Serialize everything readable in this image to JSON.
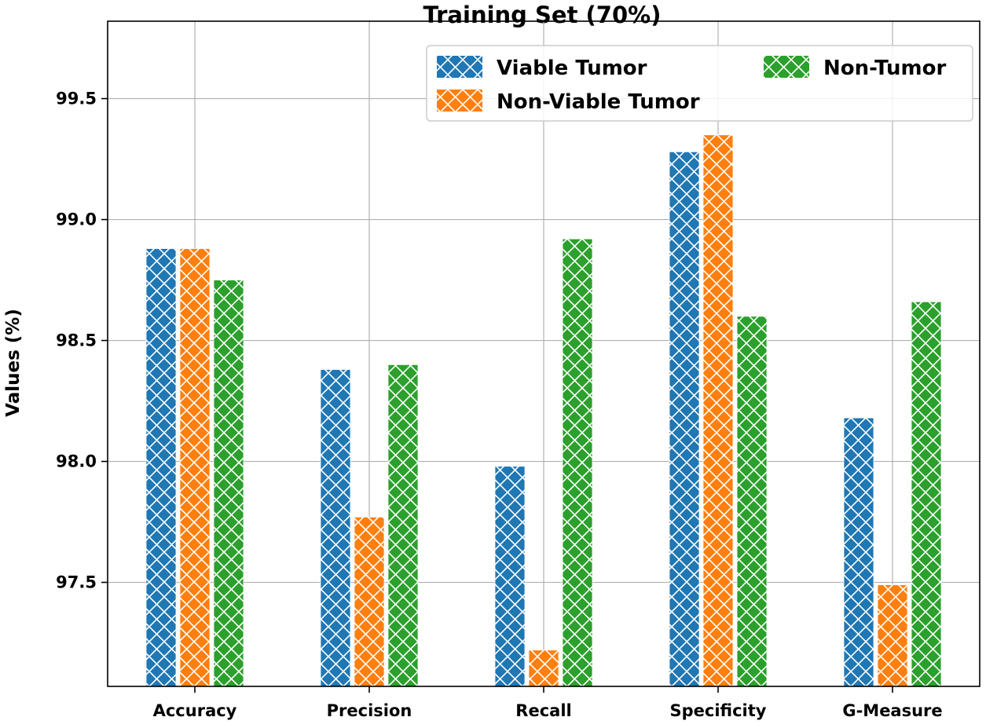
{
  "chart_data": {
    "type": "bar",
    "title": "Training Set (70%)",
    "xlabel": "",
    "ylabel": "Values (%)",
    "categories": [
      "Accuracy",
      "Precision",
      "Recall",
      "Specificity",
      "G-Measure"
    ],
    "series": [
      {
        "name": "Viable Tumor",
        "color": "#1f77b4",
        "values": [
          98.88,
          98.38,
          97.98,
          99.28,
          98.18
        ]
      },
      {
        "name": "Non-Viable Tumor",
        "color": "#ff7f0e",
        "values": [
          98.88,
          97.77,
          97.22,
          99.35,
          97.49
        ]
      },
      {
        "name": "Non-Tumor",
        "color": "#2ca02c",
        "values": [
          98.75,
          98.4,
          98.92,
          98.6,
          98.66
        ]
      }
    ],
    "ylim": [
      97.07,
      99.82
    ],
    "yticks": [
      97.5,
      98.0,
      98.5,
      99.0,
      99.5
    ],
    "ytick_labels": [
      "97.5",
      "98.0",
      "98.5",
      "99.0",
      "99.5"
    ],
    "grid": true,
    "hatch": "x",
    "legend_position": "upper-right"
  }
}
